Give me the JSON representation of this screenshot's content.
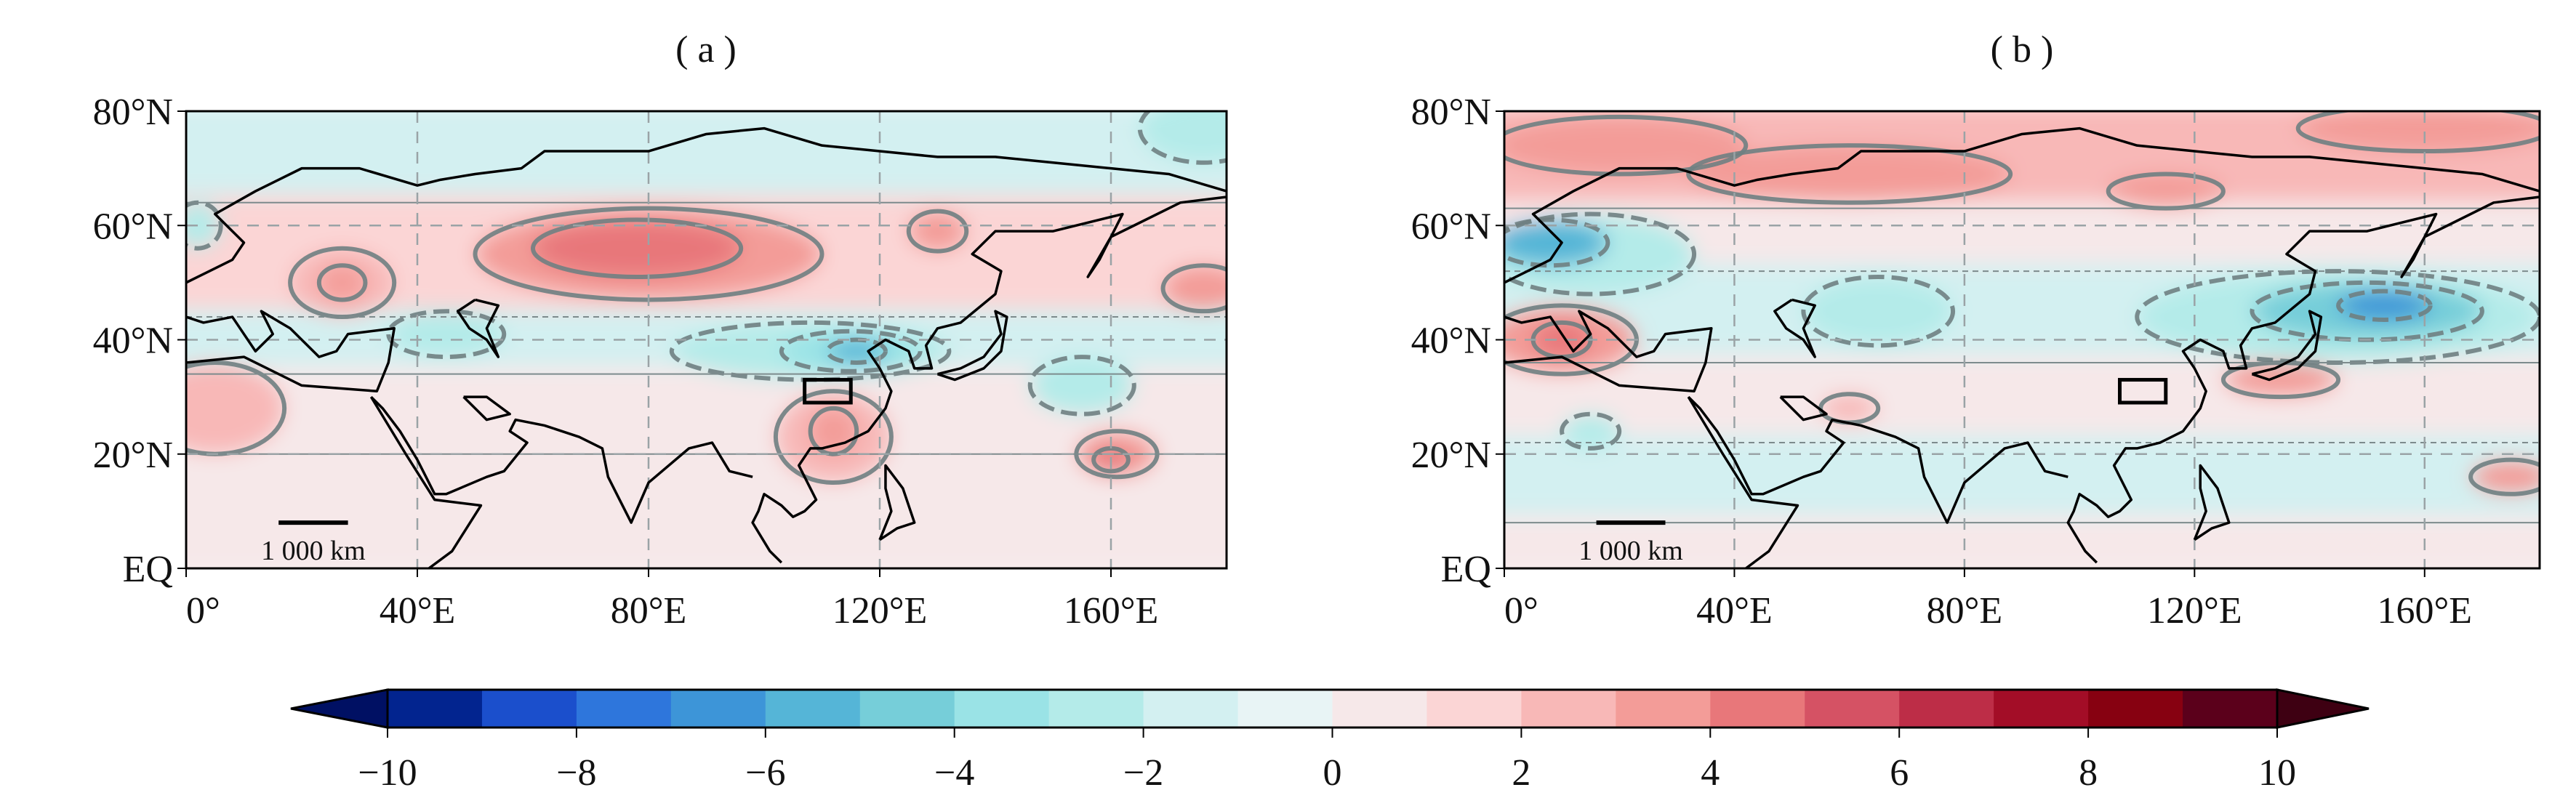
{
  "chart_data": {
    "type": "heatmap",
    "panels": [
      {
        "title": "( a )",
        "xlim": [
          0,
          180
        ],
        "ylim": [
          0,
          80
        ],
        "xticks": [
          0,
          40,
          80,
          120,
          160
        ],
        "xtick_labels": [
          "0°",
          "40°E",
          "80°E",
          "120°E",
          "160°E"
        ],
        "yticks": [
          0,
          20,
          40,
          60,
          80
        ],
        "ytick_labels": [
          "EQ",
          "20°N",
          "40°N",
          "60°N",
          "80°N"
        ],
        "scale_bar_label": "1 000 km",
        "box_region": {
          "lon": [
            107,
            115
          ],
          "lat": [
            29,
            33
          ]
        },
        "background_bands": [
          {
            "lat": [
              64,
              80
            ],
            "value": -1.5
          },
          {
            "lat": [
              44,
              64
            ],
            "value": 1.2
          },
          {
            "lat": [
              34,
              44
            ],
            "value": -1.2
          },
          {
            "lat": [
              20,
              34
            ],
            "value": 0.8
          },
          {
            "lat": [
              0,
              20
            ],
            "value": 0.6
          }
        ],
        "anomaly_centers": [
          {
            "lon": 80,
            "lat": 55,
            "rlon": 30,
            "rlat": 8,
            "value": 3
          },
          {
            "lon": 78,
            "lat": 56,
            "rlon": 18,
            "rlat": 5,
            "value": 4.5
          },
          {
            "lon": 27,
            "lat": 50,
            "rlon": 9,
            "rlat": 6,
            "value": 2.5
          },
          {
            "lon": 27,
            "lat": 50,
            "rlon": 4,
            "rlat": 3,
            "value": 3.5
          },
          {
            "lon": 130,
            "lat": 59,
            "rlon": 5,
            "rlat": 3.5,
            "value": 3
          },
          {
            "lon": 176,
            "lat": 49,
            "rlon": 7,
            "rlat": 4,
            "value": 3
          },
          {
            "lon": 5,
            "lat": 28,
            "rlon": 12,
            "rlat": 8,
            "value": 2.5
          },
          {
            "lon": 112,
            "lat": 23,
            "rlon": 10,
            "rlat": 8,
            "value": 2.5
          },
          {
            "lon": 112,
            "lat": 24,
            "rlon": 4,
            "rlat": 4,
            "value": 3.5
          },
          {
            "lon": 161,
            "lat": 20,
            "rlon": 7,
            "rlat": 4,
            "value": 3.5
          },
          {
            "lon": 160,
            "lat": 19,
            "rlon": 3,
            "rlat": 2,
            "value": 4.5
          },
          {
            "lon": 108,
            "lat": 38,
            "rlon": 24,
            "rlat": 5,
            "value": -2.5
          },
          {
            "lon": 115,
            "lat": 38,
            "rlon": 12,
            "rlat": 3.5,
            "value": -4
          },
          {
            "lon": 116,
            "lat": 38,
            "rlon": 5,
            "rlat": 2,
            "value": -5.5
          },
          {
            "lon": 45,
            "lat": 41,
            "rlon": 10,
            "rlat": 4,
            "value": -2.5
          },
          {
            "lon": 155,
            "lat": 32,
            "rlon": 9,
            "rlat": 5,
            "value": -2.5
          },
          {
            "lon": 176,
            "lat": 77,
            "rlon": 11,
            "rlat": 6,
            "value": -3
          },
          {
            "lon": 2,
            "lat": 60,
            "rlon": 4,
            "rlat": 4,
            "value": -3
          }
        ]
      },
      {
        "title": "( b )",
        "xlim": [
          0,
          180
        ],
        "ylim": [
          0,
          80
        ],
        "xticks": [
          0,
          40,
          80,
          120,
          160
        ],
        "xtick_labels": [
          "0°",
          "40°E",
          "80°E",
          "120°E",
          "160°E"
        ],
        "yticks": [
          0,
          20,
          40,
          60,
          80
        ],
        "ytick_labels": [
          "EQ",
          "20°N",
          "40°N",
          "60°N",
          "80°N"
        ],
        "scale_bar_label": "1 000 km",
        "box_region": {
          "lon": [
            107,
            115
          ],
          "lat": [
            29,
            33
          ]
        },
        "background_bands": [
          {
            "lat": [
              63,
              80
            ],
            "value": 2
          },
          {
            "lat": [
              52,
              63
            ],
            "value": 0.6
          },
          {
            "lat": [
              36,
              52
            ],
            "value": -1.2
          },
          {
            "lat": [
              22,
              36
            ],
            "value": 0.6
          },
          {
            "lat": [
              8,
              22
            ],
            "value": -1.2
          },
          {
            "lat": [
              0,
              8
            ],
            "value": 0.6
          }
        ],
        "anomaly_centers": [
          {
            "lon": 20,
            "lat": 74,
            "rlon": 22,
            "rlat": 5,
            "value": 3
          },
          {
            "lon": 60,
            "lat": 69,
            "rlon": 28,
            "rlat": 5,
            "value": 3
          },
          {
            "lon": 115,
            "lat": 66,
            "rlon": 10,
            "rlat": 3,
            "value": 3
          },
          {
            "lon": 160,
            "lat": 77,
            "rlon": 22,
            "rlat": 4,
            "value": 3
          },
          {
            "lon": 15,
            "lat": 55,
            "rlon": 18,
            "rlat": 7,
            "value": -3
          },
          {
            "lon": 8,
            "lat": 57,
            "rlon": 10,
            "rlat": 4,
            "value": -6
          },
          {
            "lon": 65,
            "lat": 45,
            "rlon": 13,
            "rlat": 6,
            "value": -3
          },
          {
            "lon": 145,
            "lat": 44,
            "rlon": 35,
            "rlat": 8,
            "value": -3
          },
          {
            "lon": 150,
            "lat": 45,
            "rlon": 20,
            "rlat": 5,
            "value": -5
          },
          {
            "lon": 153,
            "lat": 46,
            "rlon": 8,
            "rlat": 2.5,
            "value": -6.5
          },
          {
            "lon": 10,
            "lat": 40,
            "rlon": 13,
            "rlat": 6,
            "value": 3
          },
          {
            "lon": 10,
            "lat": 40,
            "rlon": 5,
            "rlat": 3,
            "value": 4.5
          },
          {
            "lon": 135,
            "lat": 33,
            "rlon": 10,
            "rlat": 3,
            "value": 3
          },
          {
            "lon": 175,
            "lat": 16,
            "rlon": 7,
            "rlat": 3,
            "value": 3
          },
          {
            "lon": 60,
            "lat": 28,
            "rlon": 5,
            "rlat": 2.5,
            "value": 2.5
          },
          {
            "lon": 15,
            "lat": 24,
            "rlon": 5,
            "rlat": 3,
            "value": -2.5
          }
        ]
      }
    ],
    "colorbar": {
      "levels": [
        -10,
        -9,
        -8,
        -7,
        -6,
        -5,
        -4,
        -3,
        -2,
        -1,
        0,
        1,
        2,
        3,
        4,
        5,
        6,
        7,
        8,
        9,
        10
      ],
      "colors": [
        "#02248f",
        "#1b4fcc",
        "#2e76dc",
        "#3d95d8",
        "#55b5d7",
        "#76ced9",
        "#9ae3e6",
        "#b4ebe9",
        "#d3f0f1",
        "#e8f4f5",
        "#f6e8e9",
        "#fbd5d5",
        "#f8b8b7",
        "#f39c98",
        "#e8777a",
        "#d55264",
        "#bd2d47",
        "#a30d27",
        "#870111",
        "#5b001b"
      ],
      "extend_low_color": "#001063",
      "extend_high_color": "#3e0012",
      "ticks": [
        -10,
        -8,
        -6,
        -4,
        -2,
        0,
        2,
        4,
        6,
        8,
        10
      ],
      "tick_labels": [
        "−10",
        "−8",
        "−6",
        "−4",
        "−2",
        "0",
        "2",
        "4",
        "6",
        "8",
        "10"
      ]
    }
  }
}
